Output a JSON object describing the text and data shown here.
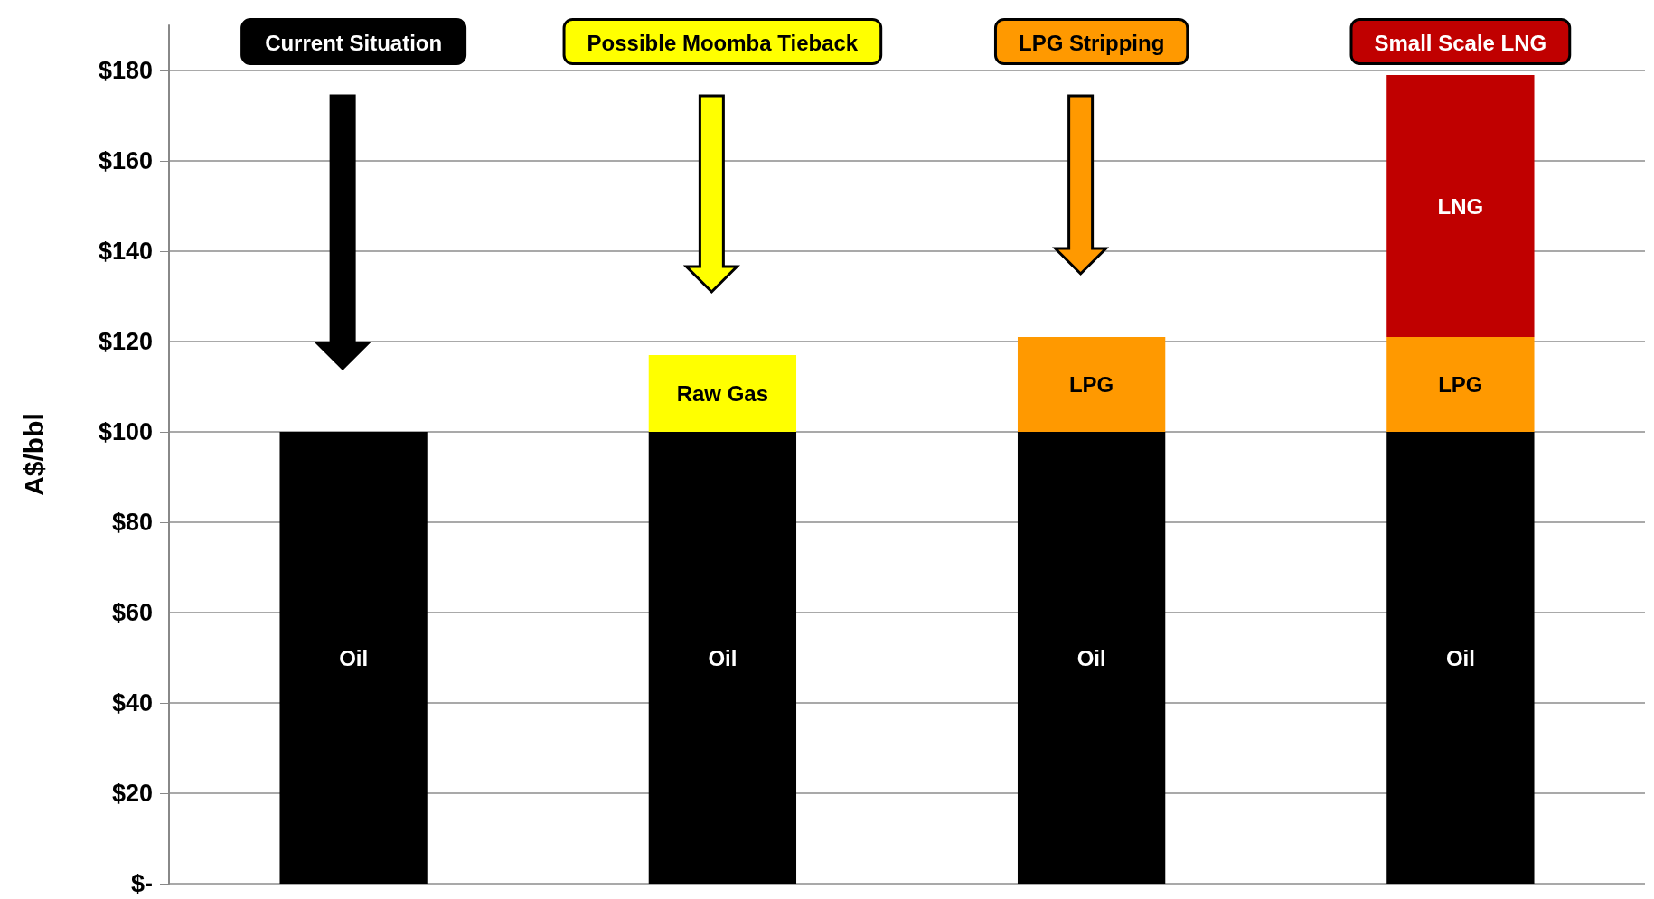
{
  "chart_data": {
    "type": "bar",
    "stacked": true,
    "ylabel": "A$/bbl",
    "categories": [
      "Current Situation",
      "Possible Moomba Tieback",
      "LPG Stripping",
      "Small Scale LNG"
    ],
    "series": [
      {
        "name": "Oil",
        "color": "#000000",
        "values": [
          100,
          100,
          100,
          100
        ]
      },
      {
        "name": "Raw Gas",
        "color": "#ffff00",
        "values": [
          null,
          17,
          null,
          null
        ]
      },
      {
        "name": "LPG",
        "color": "#ff9900",
        "values": [
          null,
          null,
          21,
          21
        ]
      },
      {
        "name": "LNG",
        "color": "#c00000",
        "values": [
          null,
          null,
          null,
          58
        ]
      }
    ],
    "ylim": [
      0,
      190
    ],
    "yticks": [
      {
        "value": 0,
        "label": "$-"
      },
      {
        "value": 20,
        "label": "$20"
      },
      {
        "value": 40,
        "label": "$40"
      },
      {
        "value": 60,
        "label": "$60"
      },
      {
        "value": 80,
        "label": "$80"
      },
      {
        "value": 100,
        "label": "$100"
      },
      {
        "value": 120,
        "label": "$120"
      },
      {
        "value": 140,
        "label": "$140"
      },
      {
        "value": 160,
        "label": "$160"
      },
      {
        "value": 180,
        "label": "$180"
      }
    ],
    "grid": "y",
    "legend": false
  }
}
